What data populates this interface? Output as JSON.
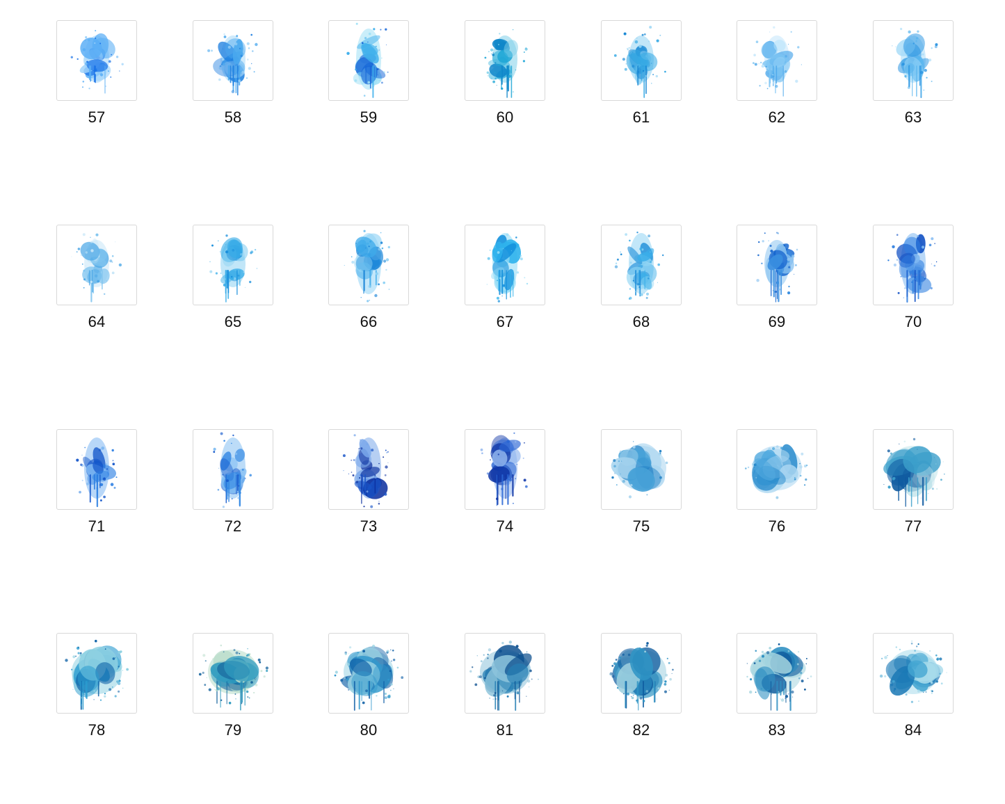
{
  "thumbnail_grid": {
    "columns": 7,
    "items": [
      {
        "label": "57",
        "style": "splat-drip",
        "colors": [
          "#1a73e8",
          "#5aaef5",
          "#9fd3fa"
        ]
      },
      {
        "label": "58",
        "style": "splat-drip",
        "colors": [
          "#1e7fe0",
          "#4aa8ee",
          "#a7d8f8"
        ]
      },
      {
        "label": "59",
        "style": "splat-tall",
        "colors": [
          "#1565d8",
          "#3fb0ec",
          "#9ee0f5"
        ]
      },
      {
        "label": "60",
        "style": "splat-drip",
        "colors": [
          "#0f86c9",
          "#1fa6d6",
          "#7fd0ea"
        ]
      },
      {
        "label": "61",
        "style": "splat-drip",
        "colors": [
          "#1787d4",
          "#36a9e4",
          "#8fd2f3"
        ]
      },
      {
        "label": "62",
        "style": "splat-drip",
        "colors": [
          "#4aa6ea",
          "#7cc4f3",
          "#c2e6fb"
        ]
      },
      {
        "label": "63",
        "style": "splat-drip",
        "colors": [
          "#2b95e2",
          "#5ab6ee",
          "#a6dbf8"
        ]
      },
      {
        "label": "64",
        "style": "splat-drip",
        "colors": [
          "#4aa6e6",
          "#7ec4ef",
          "#c6e6f8"
        ]
      },
      {
        "label": "65",
        "style": "splat-drip",
        "colors": [
          "#1a8fdc",
          "#39ade8",
          "#8ed2f3"
        ]
      },
      {
        "label": "66",
        "style": "splat-tall",
        "colors": [
          "#1c86d8",
          "#3eaaea",
          "#92d3f5"
        ]
      },
      {
        "label": "67",
        "style": "splat-tall",
        "colors": [
          "#1490dc",
          "#2fb2ec",
          "#8ad8f6"
        ]
      },
      {
        "label": "68",
        "style": "splat-tall",
        "colors": [
          "#1a8bd8",
          "#3aaee9",
          "#8fd4f4"
        ]
      },
      {
        "label": "69",
        "style": "splat-drip",
        "colors": [
          "#1566cf",
          "#3a8fe0",
          "#8cc4f1"
        ]
      },
      {
        "label": "70",
        "style": "splat-tall",
        "colors": [
          "#0f4fc4",
          "#2f7fe0",
          "#7fb8f1"
        ]
      },
      {
        "label": "71",
        "style": "splat-tall",
        "colors": [
          "#1154c9",
          "#2b7ee2",
          "#7eb7f2"
        ]
      },
      {
        "label": "72",
        "style": "splat-tall",
        "colors": [
          "#1459cc",
          "#2f86e3",
          "#85bff3"
        ]
      },
      {
        "label": "73",
        "style": "splat-tall",
        "colors": [
          "#0b2f9e",
          "#1a55c8",
          "#7aa8ea"
        ]
      },
      {
        "label": "74",
        "style": "splat-tall",
        "colors": [
          "#0d34a6",
          "#2a66d4",
          "#8fb4ee"
        ]
      },
      {
        "label": "75",
        "style": "blob",
        "colors": [
          "#1f7fc4",
          "#47a2d8",
          "#a7d4ef"
        ]
      },
      {
        "label": "76",
        "style": "blob",
        "colors": [
          "#2a8ccd",
          "#52aadf",
          "#a9d6f1"
        ]
      },
      {
        "label": "77",
        "style": "blob-drip",
        "colors": [
          "#0f5aa0",
          "#3c9fcb",
          "#bfe3ea"
        ]
      },
      {
        "label": "78",
        "style": "blob-drip",
        "colors": [
          "#0f63a8",
          "#2b9ccf",
          "#8fd1e2"
        ]
      },
      {
        "label": "79",
        "style": "blob-drip",
        "colors": [
          "#10609b",
          "#2f9bbf",
          "#b7dcc9"
        ]
      },
      {
        "label": "80",
        "style": "blob-drip",
        "colors": [
          "#0f5fa6",
          "#3298cc",
          "#9ad3e3"
        ]
      },
      {
        "label": "81",
        "style": "blob-drip",
        "colors": [
          "#0c4f8f",
          "#267fb4",
          "#8cc3db"
        ]
      },
      {
        "label": "82",
        "style": "blob-drip",
        "colors": [
          "#0f5c9f",
          "#2f94c4",
          "#9fd0e0"
        ]
      },
      {
        "label": "83",
        "style": "blob-drip",
        "colors": [
          "#0f5a9c",
          "#2f90c2",
          "#a5d5df"
        ]
      },
      {
        "label": "84",
        "style": "blob",
        "colors": [
          "#1a78b5",
          "#45a6d2",
          "#a8dbeb"
        ]
      }
    ]
  }
}
